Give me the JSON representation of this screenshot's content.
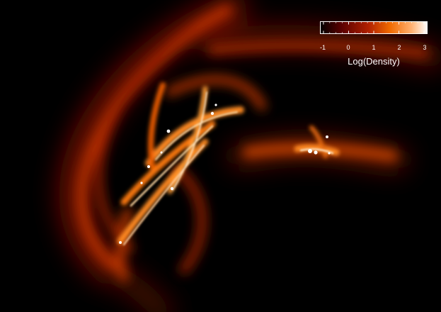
{
  "colorbar": {
    "label": "Log(Density)",
    "ticks": [
      "-1",
      "0",
      "1",
      "2",
      "3"
    ],
    "range": [
      -1,
      3
    ],
    "colors": [
      "#000000",
      "#5a0000",
      "#b02000",
      "#f06a00",
      "#ffb070",
      "#ffffff"
    ]
  },
  "image": {
    "subject": "gas-density-filaments",
    "palette": [
      "#000000",
      "#6b0a00",
      "#c43800",
      "#ff8a20",
      "#ffe0b0",
      "#ffffff"
    ]
  }
}
